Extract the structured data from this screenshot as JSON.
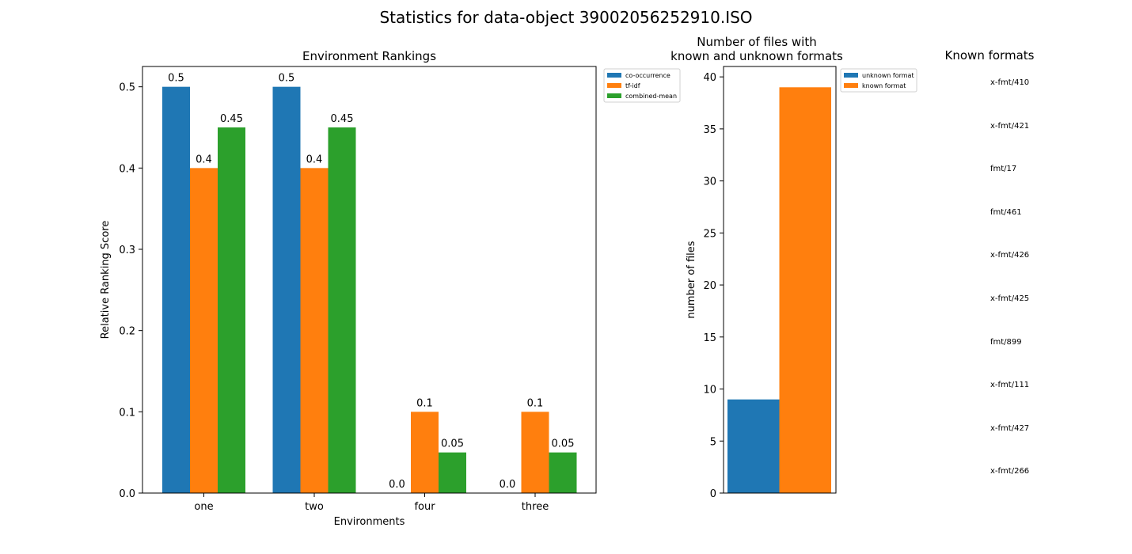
{
  "figure": {
    "title": "Statistics for data-object 39002056252910.ISO"
  },
  "chart_data": [
    {
      "type": "bar",
      "title": "Environment Rankings",
      "xlabel": "Environments",
      "ylabel": "Relative Ranking Score",
      "categories": [
        "one",
        "two",
        "four",
        "three"
      ],
      "series": [
        {
          "name": "co-occurrence",
          "color": "#1f77b4",
          "values": [
            0.5,
            0.5,
            0.0,
            0.0
          ],
          "labels": [
            "0.5",
            "0.5",
            "0.0",
            "0.0"
          ]
        },
        {
          "name": "tf-idf",
          "color": "#ff7f0e",
          "values": [
            0.4,
            0.4,
            0.1,
            0.1
          ],
          "labels": [
            "0.4",
            "0.4",
            "0.1",
            "0.1"
          ]
        },
        {
          "name": "combined-mean",
          "color": "#2ca02c",
          "values": [
            0.45,
            0.45,
            0.05,
            0.05
          ],
          "labels": [
            "0.45",
            "0.45",
            "0.05",
            "0.05"
          ]
        }
      ],
      "ylim": [
        0,
        0.525
      ],
      "yticks": [
        "0.0",
        "0.1",
        "0.2",
        "0.3",
        "0.4",
        "0.5"
      ],
      "legend": "outside-top-right",
      "grid": false
    },
    {
      "type": "bar",
      "title": "Number of files with\nknown and unknown formats",
      "title_lines": [
        "Number of files with",
        "known and unknown formats"
      ],
      "ylabel": "number of files",
      "series": [
        {
          "name": "unknown format",
          "color": "#1f77b4",
          "value": 9
        },
        {
          "name": "known format",
          "color": "#ff7f0e",
          "value": 39
        }
      ],
      "ylim": [
        0,
        41
      ],
      "yticks": [
        "0",
        "5",
        "10",
        "15",
        "20",
        "25",
        "30",
        "35",
        "40"
      ],
      "legend": "outside-top-right",
      "grid": false
    }
  ],
  "known_formats": {
    "title": "Known formats",
    "items": [
      "x-fmt/410",
      "x-fmt/421",
      "fmt/17",
      "fmt/461",
      "x-fmt/426",
      "x-fmt/425",
      "fmt/899",
      "x-fmt/111",
      "x-fmt/427",
      "x-fmt/266"
    ]
  }
}
